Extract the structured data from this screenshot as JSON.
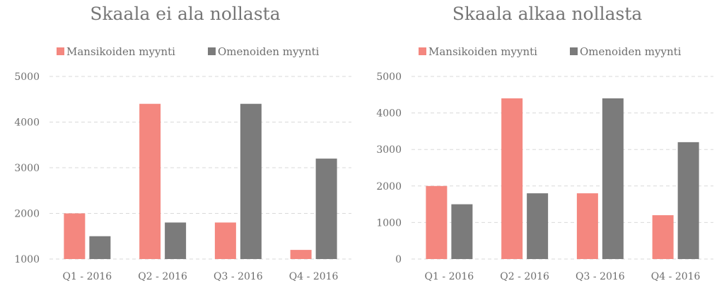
{
  "chart_data": [
    {
      "type": "bar",
      "title": "Skaala ei ala nollasta",
      "xlabel": "",
      "ylabel": "",
      "categories": [
        "Q1 - 2016",
        "Q2 - 2016",
        "Q3 - 2016",
        "Q4 - 2016"
      ],
      "series": [
        {
          "name": "Mansikoiden myynti",
          "values": [
            2000,
            4400,
            1800,
            1200
          ],
          "color": "#f4877f"
        },
        {
          "name": "Omenoiden myynti",
          "values": [
            1500,
            1800,
            4400,
            3200
          ],
          "color": "#7b7b7b"
        }
      ],
      "ylim": [
        1000,
        5000
      ],
      "yticks": [
        1000,
        2000,
        3000,
        4000,
        5000
      ],
      "grid": true,
      "legend": "top"
    },
    {
      "type": "bar",
      "title": "Skaala alkaa nollasta",
      "xlabel": "",
      "ylabel": "",
      "categories": [
        "Q1 - 2016",
        "Q2 - 2016",
        "Q3 - 2016",
        "Q4 - 2016"
      ],
      "series": [
        {
          "name": "Mansikoiden myynti",
          "values": [
            2000,
            4400,
            1800,
            1200
          ],
          "color": "#f4877f"
        },
        {
          "name": "Omenoiden myynti",
          "values": [
            1500,
            1800,
            4400,
            3200
          ],
          "color": "#7b7b7b"
        }
      ],
      "ylim": [
        0,
        5000
      ],
      "yticks": [
        0,
        1000,
        2000,
        3000,
        4000,
        5000
      ],
      "grid": true,
      "legend": "top"
    }
  ]
}
